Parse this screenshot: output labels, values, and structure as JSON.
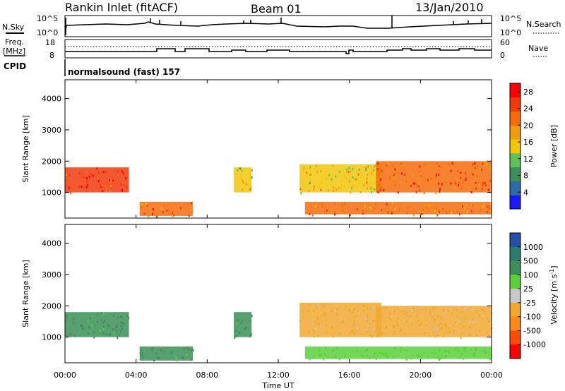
{
  "header": {
    "site": "Rankin Inlet (fitACF)",
    "beam": "Beam 01",
    "date": "13/Jan/2010"
  },
  "aux": {
    "nsky_label": "N.Sky",
    "nsearch_label": "N.Search",
    "freq_label_1": "Freq.",
    "freq_label_2": "[MHz]",
    "nave_label": "Nave",
    "cpid_label": "CPID",
    "cpid_value": "normalsound (fast) 157",
    "noise_ticks_left": [
      "10^5",
      "10^0"
    ],
    "noise_ticks_right": [
      "10^5",
      "10^0"
    ],
    "freq_ticks": [
      "18",
      "8"
    ],
    "nave_ticks": [
      "60",
      "0"
    ]
  },
  "colors": {
    "power_scale": [
      "#1a1aff",
      "#2d6aa8",
      "#3b8f57",
      "#5fc15b",
      "#f2c40a",
      "#f59b0e",
      "#f56b0a",
      "#f03a0a",
      "#ff0000"
    ],
    "velocity_scale": [
      "#ff0000",
      "#ff4d00",
      "#ff8a1a",
      "#f0a830",
      "#c8c8c8",
      "#5ad03a",
      "#3b8f57",
      "#2e7a6e",
      "#2450a8"
    ]
  },
  "chart_data": [
    {
      "type": "heatmap",
      "name": "power-panel",
      "xlabel": "",
      "ylabel": "Slant Range [km]",
      "xlim": [
        "00:00",
        "00:00"
      ],
      "ylim": [
        180,
        4600
      ],
      "x_ticks": [
        "00:00",
        "04:00",
        "08:00",
        "12:00",
        "16:00",
        "20:00",
        "00:00"
      ],
      "y_ticks": [
        1000,
        2000,
        3000,
        4000
      ],
      "colorbar": {
        "label": "Power [dB]",
        "ticks": [
          4,
          8,
          12,
          16,
          20,
          24,
          28
        ],
        "range": [
          0,
          30
        ]
      },
      "regions": [
        {
          "t0": 0.0,
          "t1": 3.6,
          "r0": 1000,
          "r1": 1800,
          "level": 26
        },
        {
          "t0": 4.2,
          "t1": 7.2,
          "r0": 250,
          "r1": 700,
          "level": 22
        },
        {
          "t0": 9.5,
          "t1": 10.5,
          "r0": 1000,
          "r1": 1800,
          "level": 14
        },
        {
          "t0": 13.2,
          "t1": 17.8,
          "r0": 1000,
          "r1": 1900,
          "level": 16
        },
        {
          "t0": 13.5,
          "t1": 24.0,
          "r0": 300,
          "r1": 700,
          "level": 22
        },
        {
          "t0": 17.5,
          "t1": 24.0,
          "r0": 1000,
          "r1": 2000,
          "level": 24
        }
      ]
    },
    {
      "type": "heatmap",
      "name": "velocity-panel",
      "xlabel": "Time UT",
      "ylabel": "Slant Range [km]",
      "xlim": [
        "00:00",
        "00:00"
      ],
      "ylim": [
        180,
        4600
      ],
      "x_ticks": [
        "00:00",
        "04:00",
        "08:00",
        "12:00",
        "16:00",
        "20:00",
        "00:00"
      ],
      "y_ticks": [
        1000,
        2000,
        3000,
        4000
      ],
      "colorbar": {
        "label": "Velocity [m s^-1]",
        "ticks": [
          "1000",
          "500",
          "100",
          "25",
          "-25",
          "-100",
          "-500",
          "-1000"
        ]
      },
      "regions": [
        {
          "t0": 0.0,
          "t1": 3.6,
          "r0": 1000,
          "r1": 1800,
          "velocity": 100
        },
        {
          "t0": 4.2,
          "t1": 7.2,
          "r0": 250,
          "r1": 700,
          "velocity": 100
        },
        {
          "t0": 9.5,
          "t1": 10.5,
          "r0": 1000,
          "r1": 1800,
          "velocity": 100
        },
        {
          "t0": 13.2,
          "t1": 17.8,
          "r0": 1000,
          "r1": 2100,
          "velocity": -100
        },
        {
          "t0": 13.5,
          "t1": 24.0,
          "r0": 300,
          "r1": 700,
          "velocity": 25
        },
        {
          "t0": 17.5,
          "t1": 24.0,
          "r0": 1000,
          "r1": 2000,
          "velocity": -100
        }
      ]
    }
  ]
}
